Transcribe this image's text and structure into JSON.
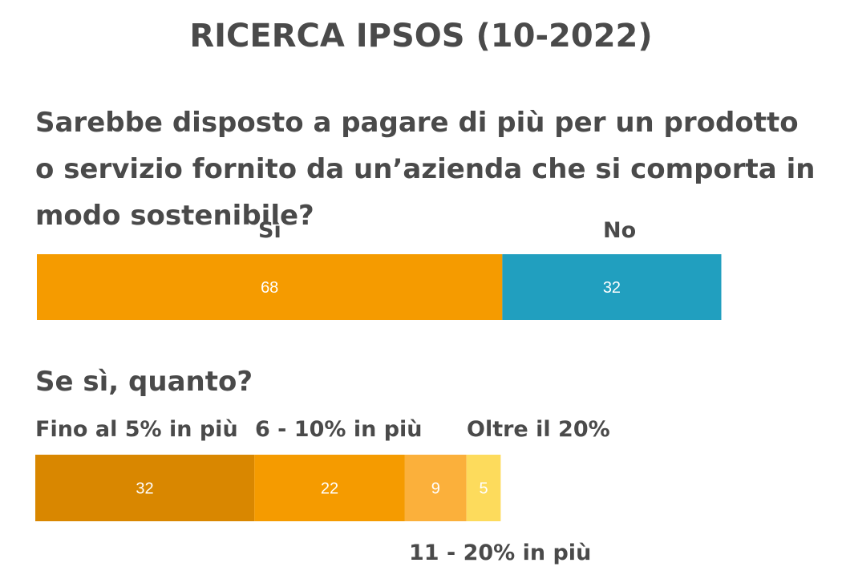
{
  "title": "RICERCA IPSOS (10-2022)",
  "question": "Sarebbe disposto a pagare di più per un prodotto o servizio fornito da un’azienda che si comporta in modo sostenibile?",
  "sub_question": "Se sì, quanto?",
  "chart_data": [
    {
      "type": "bar",
      "stacked": true,
      "orientation": "horizontal",
      "categories": [
        "Sì",
        "No"
      ],
      "values": [
        68,
        32
      ],
      "colors": [
        "#f59b00",
        "#219fbf"
      ],
      "xlim": [
        0,
        100
      ],
      "grid": false,
      "legend": "none"
    },
    {
      "type": "bar",
      "stacked": true,
      "orientation": "horizontal",
      "categories": [
        "Fino al 5% in più",
        "6 - 10% in più",
        "11 - 20% in più",
        "Oltre il 20%"
      ],
      "values": [
        32,
        22,
        9,
        5
      ],
      "colors": [
        "#d98700",
        "#f59b00",
        "#fbb03b",
        "#fddb5c"
      ],
      "xlim": [
        0,
        100
      ],
      "grid": false,
      "legend": "none"
    }
  ]
}
